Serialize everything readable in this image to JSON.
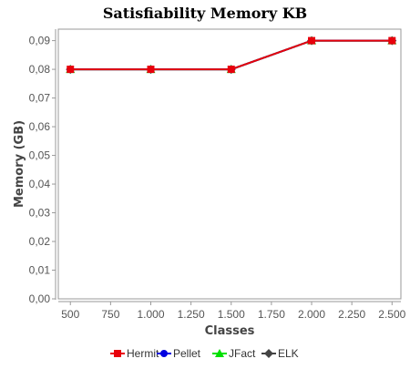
{
  "chart_data": {
    "type": "line",
    "title": "Satisfiability Memory KB",
    "xlabel": "Classes",
    "ylabel": "Memory (GB)",
    "x_ticks": [
      "500",
      "750",
      "1.000",
      "1.250",
      "1.500",
      "1.750",
      "2.000",
      "2.250",
      "2.500"
    ],
    "x_tick_values": [
      500,
      750,
      1000,
      1250,
      1500,
      1750,
      2000,
      2250,
      2500
    ],
    "xlim": [
      425,
      2555
    ],
    "y_ticks": [
      "0,00",
      "0,01",
      "0,02",
      "0,03",
      "0,04",
      "0,05",
      "0,06",
      "0,07",
      "0,08",
      "0,09"
    ],
    "y_tick_values": [
      0,
      0.01,
      0.02,
      0.03,
      0.04,
      0.05,
      0.06,
      0.07,
      0.08,
      0.09
    ],
    "ylim": [
      0,
      0.094
    ],
    "grid": false,
    "legend_position": "bottom",
    "x": [
      500,
      1000,
      1500,
      2000,
      2500
    ],
    "series": [
      {
        "name": "Hermit",
        "values": [
          0.08,
          0.08,
          0.08,
          0.09,
          0.09
        ],
        "color": "#e8000b",
        "marker": "square"
      },
      {
        "name": "Pellet",
        "values": [
          0.08,
          0.08,
          0.08,
          0.09,
          0.09
        ],
        "color": "#0000e0",
        "marker": "circle"
      },
      {
        "name": "JFact",
        "values": [
          0.08,
          0.08,
          0.08,
          0.09,
          0.09
        ],
        "color": "#00e000",
        "marker": "triangle"
      },
      {
        "name": "ELK",
        "values": [
          0.08,
          0.08,
          0.08,
          0.09,
          0.09
        ],
        "color": "#444444",
        "marker": "diamond"
      }
    ]
  }
}
